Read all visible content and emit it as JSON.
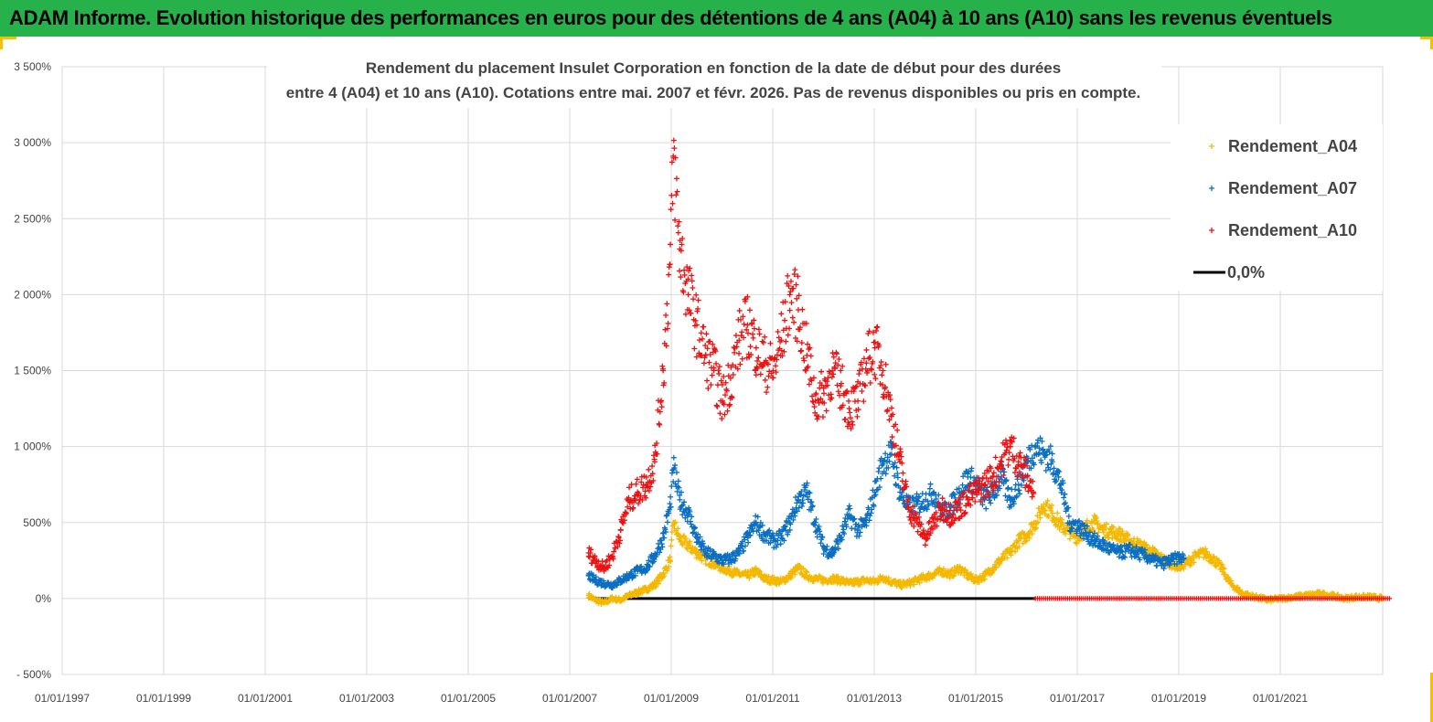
{
  "header": {
    "title": "ADAM Informe. Evolution historique des performances en euros pour des détentions de 4 ans (A04) à 10 ans (A10) sans les revenus éventuels"
  },
  "colors": {
    "banner": "#27b14b",
    "corner_accent": "#f2c200",
    "a04": "#f5b800",
    "a07": "#0a6fc2",
    "a10": "#ee1111",
    "zero_line": "#000000",
    "grid": "#d9d9d9"
  },
  "chart_data": {
    "type": "scatter",
    "title_lines": [
      "Rendement du placement Insulet Corporation en fonction de la date de début pour des durées",
      "entre 4 (A04) et 10 ans (A10). Cotations entre mai. 2007 et févr. 2026. Pas de revenus disponibles ou pris en compte."
    ],
    "y_ticks": [
      "3 500%",
      "3 000%",
      "2 500%",
      "2 000%",
      "1 500%",
      "1 000%",
      "500%",
      "0%",
      "- 500%"
    ],
    "y_tick_values": [
      3500,
      3000,
      2500,
      2000,
      1500,
      1000,
      500,
      0,
      -500
    ],
    "ylim": [
      -500,
      3500
    ],
    "x_ticks": [
      "01/01/1997",
      "01/01/1999",
      "01/01/2001",
      "01/01/2003",
      "01/01/2005",
      "01/01/2007",
      "01/01/2009",
      "01/01/2011",
      "01/01/2013",
      "01/01/2015",
      "01/01/2017",
      "01/01/2019",
      "01/01/2021"
    ],
    "xlim": [
      "1997-01-01",
      "2023-03-01"
    ],
    "grid": true,
    "legend_position": "top-right",
    "legend": [
      "Rendement_A04",
      "Rendement_A07",
      "Rendement_A10",
      "0,0%"
    ],
    "series": [
      {
        "name": "Rendement_A04",
        "marker": "+",
        "x": [
          "2007-05-15",
          "2007-07-01",
          "2007-09-01",
          "2007-11-01",
          "2008-01-01",
          "2008-03-01",
          "2008-05-01",
          "2008-07-01",
          "2008-09-01",
          "2008-11-01",
          "2008-12-20",
          "2009-01-15",
          "2009-03-01",
          "2009-05-01",
          "2009-07-01",
          "2009-09-01",
          "2009-11-01",
          "2010-01-01",
          "2010-03-01",
          "2010-05-01",
          "2010-07-01",
          "2010-09-01",
          "2010-11-01",
          "2011-01-01",
          "2011-03-01",
          "2011-05-01",
          "2011-07-01",
          "2011-09-01",
          "2011-11-01",
          "2012-01-01",
          "2012-03-01",
          "2012-05-01",
          "2012-07-01",
          "2012-09-01",
          "2012-11-01",
          "2013-01-01",
          "2013-03-01",
          "2013-05-01",
          "2013-07-01",
          "2013-09-01",
          "2013-11-01",
          "2014-01-01",
          "2014-03-01",
          "2014-05-01",
          "2014-07-01",
          "2014-09-01",
          "2014-11-01",
          "2015-01-01",
          "2015-03-01",
          "2015-05-01",
          "2015-07-01",
          "2015-09-01",
          "2015-11-01",
          "2016-01-01",
          "2016-03-01",
          "2016-05-01",
          "2016-07-01",
          "2016-09-01",
          "2016-11-01",
          "2017-01-01",
          "2017-03-01",
          "2017-05-01",
          "2017-07-01",
          "2017-09-01",
          "2017-11-01",
          "2018-01-01",
          "2018-03-01",
          "2018-05-01",
          "2018-07-01",
          "2018-09-01",
          "2018-11-01",
          "2019-01-01",
          "2019-03-01",
          "2019-05-01",
          "2019-07-01",
          "2019-09-01",
          "2019-11-01",
          "2020-01-01",
          "2020-04-01",
          "2020-07-01",
          "2020-10-01",
          "2021-01-01",
          "2021-04-01",
          "2021-07-01",
          "2021-10-01",
          "2022-01-01",
          "2022-04-01",
          "2022-07-01",
          "2022-10-01",
          "2023-01-01"
        ],
        "y": [
          20,
          -10,
          -30,
          0,
          -10,
          20,
          40,
          60,
          90,
          160,
          250,
          500,
          390,
          350,
          300,
          260,
          230,
          200,
          180,
          160,
          150,
          180,
          130,
          120,
          110,
          150,
          200,
          150,
          130,
          120,
          130,
          120,
          100,
          110,
          120,
          110,
          140,
          110,
          90,
          100,
          120,
          140,
          160,
          180,
          160,
          200,
          150,
          120,
          150,
          200,
          260,
          300,
          380,
          420,
          500,
          620,
          560,
          480,
          440,
          400,
          470,
          500,
          450,
          440,
          420,
          380,
          360,
          330,
          300,
          260,
          230,
          210,
          240,
          280,
          300,
          260,
          200,
          100,
          30,
          10,
          -10,
          0,
          10,
          20,
          30,
          20,
          0,
          10,
          10,
          0
        ]
      },
      {
        "name": "Rendement_A07",
        "marker": "+",
        "x": [
          "2007-05-15",
          "2007-07-01",
          "2007-09-01",
          "2007-11-01",
          "2008-01-01",
          "2008-03-01",
          "2008-05-01",
          "2008-07-01",
          "2008-09-01",
          "2008-11-01",
          "2008-12-20",
          "2009-01-15",
          "2009-03-01",
          "2009-05-01",
          "2009-07-01",
          "2009-09-01",
          "2009-11-01",
          "2010-01-01",
          "2010-03-01",
          "2010-05-01",
          "2010-07-01",
          "2010-09-01",
          "2010-11-01",
          "2011-01-01",
          "2011-03-01",
          "2011-05-01",
          "2011-07-01",
          "2011-09-01",
          "2011-11-01",
          "2012-01-01",
          "2012-03-01",
          "2012-05-01",
          "2012-07-01",
          "2012-09-01",
          "2012-11-01",
          "2013-01-01",
          "2013-03-01",
          "2013-05-01",
          "2013-07-01",
          "2013-09-01",
          "2013-11-01",
          "2014-01-01",
          "2014-03-01",
          "2014-05-01",
          "2014-07-01",
          "2014-09-01",
          "2014-11-01",
          "2015-01-01",
          "2015-03-01",
          "2015-05-01",
          "2015-07-01",
          "2015-09-01",
          "2015-11-01",
          "2016-01-01",
          "2016-03-01",
          "2016-05-01",
          "2016-07-01",
          "2016-09-01",
          "2016-11-01",
          "2017-01-01",
          "2017-03-01",
          "2017-05-01",
          "2017-07-01",
          "2017-09-01",
          "2017-11-01",
          "2018-01-01",
          "2018-03-01",
          "2018-05-01",
          "2018-07-01",
          "2018-09-01",
          "2018-11-01",
          "2019-01-01",
          "2019-02-01"
        ],
        "y": [
          150,
          120,
          100,
          90,
          120,
          150,
          180,
          200,
          280,
          400,
          600,
          850,
          650,
          560,
          400,
          300,
          280,
          250,
          260,
          300,
          400,
          500,
          420,
          380,
          400,
          500,
          650,
          700,
          500,
          330,
          300,
          400,
          550,
          450,
          500,
          700,
          900,
          950,
          700,
          600,
          620,
          650,
          700,
          560,
          600,
          700,
          800,
          750,
          650,
          700,
          800,
          650,
          750,
          900,
          1000,
          950,
          900,
          750,
          500,
          480,
          430,
          380,
          350,
          320,
          300,
          320,
          300,
          280,
          250,
          230,
          250,
          270,
          260
        ]
      },
      {
        "name": "Rendement_A10",
        "marker": "+",
        "x": [
          "2007-05-15",
          "2007-07-01",
          "2007-09-01",
          "2007-11-01",
          "2008-01-01",
          "2008-03-01",
          "2008-05-01",
          "2008-07-01",
          "2008-09-01",
          "2008-11-01",
          "2008-12-20",
          "2009-01-15",
          "2009-03-01",
          "2009-05-01",
          "2009-07-01",
          "2009-09-01",
          "2009-11-01",
          "2010-01-01",
          "2010-03-01",
          "2010-05-01",
          "2010-07-01",
          "2010-09-01",
          "2010-11-01",
          "2011-01-01",
          "2011-03-01",
          "2011-05-01",
          "2011-07-01",
          "2011-09-01",
          "2011-11-01",
          "2012-01-01",
          "2012-03-01",
          "2012-05-01",
          "2012-07-01",
          "2012-09-01",
          "2012-11-01",
          "2013-01-01",
          "2013-03-01",
          "2013-05-01",
          "2013-07-01",
          "2013-09-01",
          "2013-11-01",
          "2014-01-01",
          "2014-03-01",
          "2014-05-01",
          "2014-07-01",
          "2014-09-01",
          "2014-11-01",
          "2015-01-01",
          "2015-03-01",
          "2015-05-01",
          "2015-07-01",
          "2015-09-01",
          "2015-11-01",
          "2016-01-01",
          "2016-02-15"
        ],
        "y": [
          300,
          250,
          200,
          280,
          450,
          650,
          700,
          750,
          900,
          1500,
          2200,
          2900,
          2300,
          2000,
          1800,
          1600,
          1500,
          1300,
          1450,
          1700,
          1800,
          1650,
          1550,
          1500,
          1700,
          2000,
          1900,
          1600,
          1300,
          1350,
          1500,
          1400,
          1250,
          1300,
          1550,
          1650,
          1500,
          1200,
          900,
          600,
          500,
          400,
          500,
          600,
          550,
          600,
          650,
          700,
          750,
          800,
          900,
          1000,
          900,
          800,
          700
        ]
      },
      {
        "name": "0,0%",
        "x": [
          "2007-05-15",
          "2016-03-01"
        ],
        "y": [
          0,
          0
        ]
      }
    ],
    "extra_a10_flat": {
      "x": [
        "2016-03-01",
        "2023-03-01"
      ],
      "y": [
        0,
        0
      ]
    }
  }
}
